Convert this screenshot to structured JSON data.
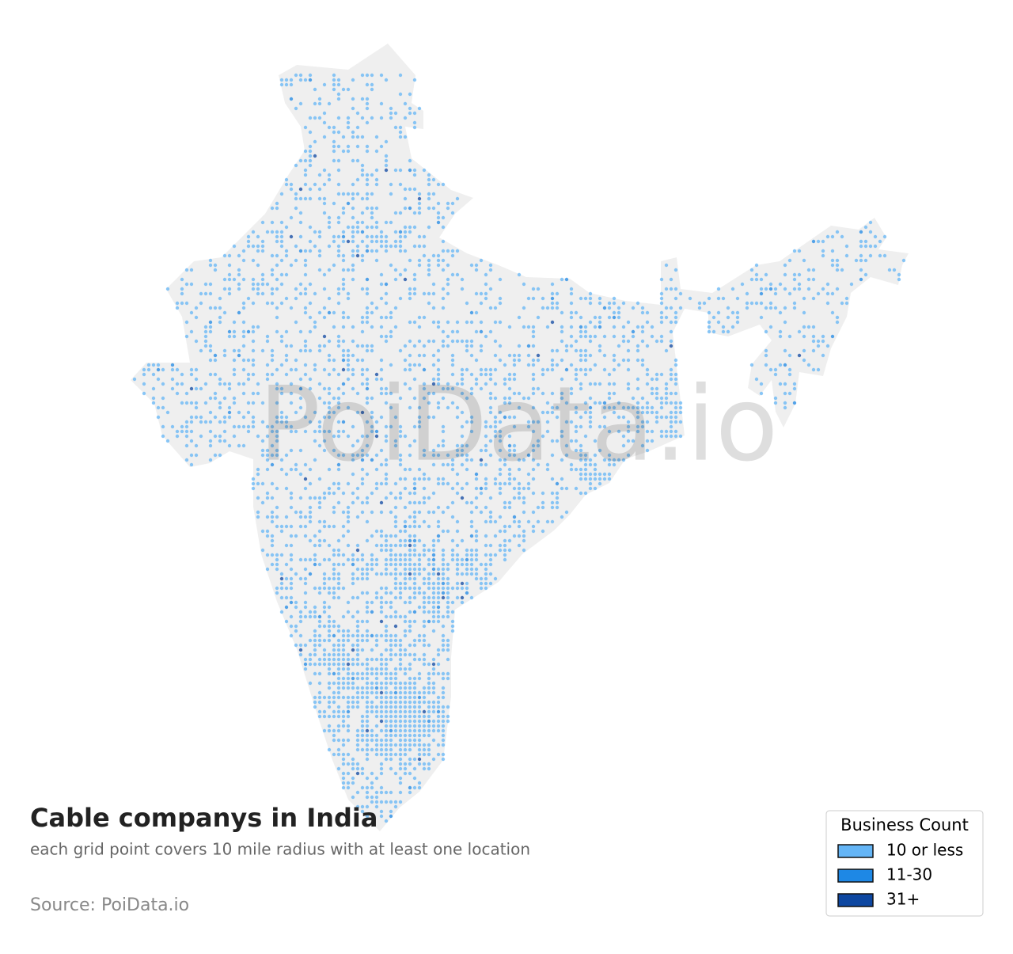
{
  "title": "Cable companys in India",
  "subtitle": "each grid point covers 10 mile radius with at least one location",
  "source": "Source: PoiData.io",
  "watermark": "PoiData.io",
  "legend": {
    "title": "Business Count",
    "items": [
      {
        "label": "10 or less",
        "color": "#64b5f6"
      },
      {
        "label": "11-30",
        "color": "#1e88e5"
      },
      {
        "label": "31+",
        "color": "#0d47a1"
      }
    ]
  }
}
